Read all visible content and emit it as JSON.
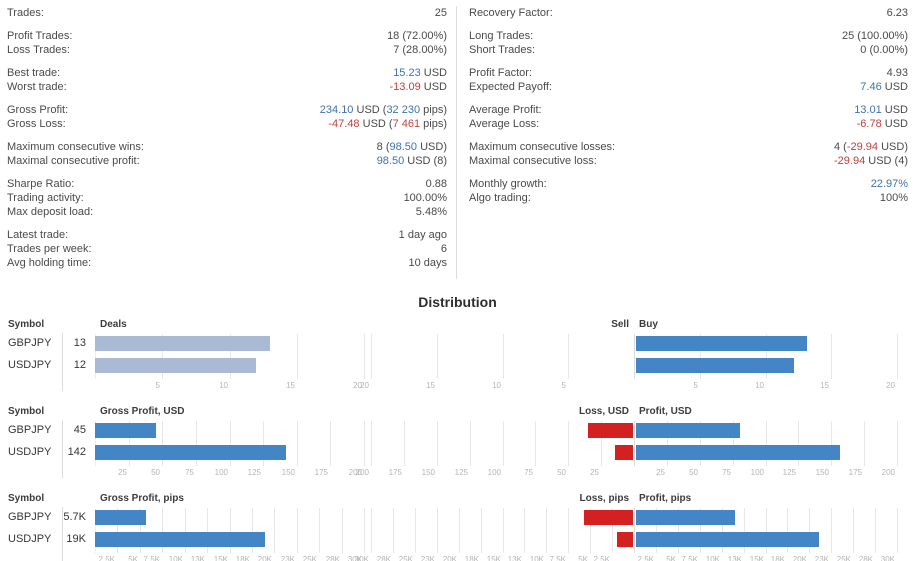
{
  "colors": {
    "value_blue": "#3f72ae",
    "value_red": "#c0403c",
    "bar_light_blue": "#aab9d4",
    "bar_blue": "#4485c5",
    "bar_red": "#d32121"
  },
  "stats": {
    "left_groups": [
      [
        {
          "label": "Trades:",
          "value": [
            [
              "plain",
              "25"
            ]
          ]
        }
      ],
      [
        {
          "label": "Profit Trades:",
          "value": [
            [
              "plain",
              "18 (72.00%)"
            ]
          ]
        },
        {
          "label": "Loss Trades:",
          "value": [
            [
              "plain",
              "7 (28.00%)"
            ]
          ]
        }
      ],
      [
        {
          "label": "Best trade:",
          "value": [
            [
              "blue",
              "15.23"
            ],
            [
              "plain",
              " USD"
            ]
          ]
        },
        {
          "label": "Worst trade:",
          "value": [
            [
              "red",
              "-13.09"
            ],
            [
              "plain",
              " USD"
            ]
          ]
        }
      ],
      [
        {
          "label": "Gross Profit:",
          "value": [
            [
              "blue",
              "234.10"
            ],
            [
              "plain",
              " USD ("
            ],
            [
              "blue",
              "32 230"
            ],
            [
              "plain",
              " pips)"
            ]
          ]
        },
        {
          "label": "Gross Loss:",
          "value": [
            [
              "red",
              "-47.48"
            ],
            [
              "plain",
              " USD ("
            ],
            [
              "red",
              "7 461"
            ],
            [
              "plain",
              " pips)"
            ]
          ]
        }
      ],
      [
        {
          "label": "Maximum consecutive wins:",
          "value": [
            [
              "plain",
              "8 ("
            ],
            [
              "blue",
              "98.50"
            ],
            [
              "plain",
              " USD)"
            ]
          ]
        },
        {
          "label": "Maximal consecutive profit:",
          "value": [
            [
              "blue",
              "98.50"
            ],
            [
              "plain",
              " USD (8)"
            ]
          ]
        }
      ],
      [
        {
          "label": "Sharpe Ratio:",
          "value": [
            [
              "plain",
              "0.88"
            ]
          ]
        },
        {
          "label": "Trading activity:",
          "value": [
            [
              "plain",
              "100.00%"
            ]
          ]
        },
        {
          "label": "Max deposit load:",
          "value": [
            [
              "plain",
              "5.48%"
            ]
          ]
        }
      ],
      [
        {
          "label": "Latest trade:",
          "value": [
            [
              "plain",
              "1 day ago"
            ]
          ]
        },
        {
          "label": "Trades per week:",
          "value": [
            [
              "plain",
              "6"
            ]
          ]
        },
        {
          "label": "Avg holding time:",
          "value": [
            [
              "plain",
              "10 days"
            ]
          ]
        }
      ]
    ],
    "right_groups": [
      [
        {
          "label": "Recovery Factor:",
          "value": [
            [
              "plain",
              "6.23"
            ]
          ]
        }
      ],
      [
        {
          "label": "Long Trades:",
          "value": [
            [
              "plain",
              "25 (100.00%)"
            ]
          ]
        },
        {
          "label": "Short Trades:",
          "value": [
            [
              "plain",
              "0 (0.00%)"
            ]
          ]
        }
      ],
      [
        {
          "label": "Profit Factor:",
          "value": [
            [
              "plain",
              "4.93"
            ]
          ]
        },
        {
          "label": "Expected Payoff:",
          "value": [
            [
              "blue",
              "7.46"
            ],
            [
              "plain",
              " USD"
            ]
          ]
        }
      ],
      [
        {
          "label": "Average Profit:",
          "value": [
            [
              "blue",
              "13.01"
            ],
            [
              "plain",
              " USD"
            ]
          ]
        },
        {
          "label": "Average Loss:",
          "value": [
            [
              "red",
              "-6.78"
            ],
            [
              "plain",
              " USD"
            ]
          ]
        }
      ],
      [
        {
          "label": "Maximum consecutive losses:",
          "value": [
            [
              "plain",
              "4 ("
            ],
            [
              "red",
              "-29.94"
            ],
            [
              "plain",
              " USD)"
            ]
          ]
        },
        {
          "label": "Maximal consecutive loss:",
          "value": [
            [
              "red",
              "-29.94"
            ],
            [
              "plain",
              " USD (4)"
            ]
          ]
        }
      ],
      [
        {
          "label": "Monthly growth:",
          "value": [
            [
              "blue",
              "22.97%"
            ]
          ]
        },
        {
          "label": "Algo trading:",
          "value": [
            [
              "plain",
              "100%"
            ]
          ]
        }
      ]
    ]
  },
  "distribution": {
    "title": "Distribution",
    "symbol_header": "Symbol",
    "sections": [
      {
        "name": "deals",
        "left_title": "Deals",
        "sell_title": "Sell",
        "buy_title": "Buy",
        "max": 20,
        "ticks": [
          [
            5,
            "5"
          ],
          [
            10,
            "10"
          ],
          [
            15,
            "15"
          ],
          [
            20,
            "20"
          ]
        ],
        "left_bar_class": "bar-light",
        "rows": [
          {
            "symbol": "GBPJPY",
            "value_label": "13",
            "net": 13,
            "loss": 0,
            "profit": 13
          },
          {
            "symbol": "USDJPY",
            "value_label": "12",
            "net": 12,
            "loss": 0,
            "profit": 12
          }
        ]
      },
      {
        "name": "usd",
        "left_title": "Gross Profit, USD",
        "sell_title": "Loss, USD",
        "buy_title": "Profit, USD",
        "max": 200,
        "ticks": [
          [
            25,
            "25"
          ],
          [
            50,
            "50"
          ],
          [
            75,
            "75"
          ],
          [
            100,
            "100"
          ],
          [
            125,
            "125"
          ],
          [
            150,
            "150"
          ],
          [
            175,
            "175"
          ],
          [
            200,
            "200"
          ]
        ],
        "left_bar_class": "bar-blue",
        "rows": [
          {
            "symbol": "GBPJPY",
            "value_label": "45",
            "net": 45,
            "loss": 34.08,
            "profit": 79.08
          },
          {
            "symbol": "USDJPY",
            "value_label": "142",
            "net": 142,
            "loss": 13.4,
            "profit": 155.02
          }
        ]
      },
      {
        "name": "pips",
        "left_title": "Gross Profit, pips",
        "sell_title": "Loss, pips",
        "buy_title": "Profit, pips",
        "max": 30000,
        "ticks": [
          [
            2500,
            "2.5K"
          ],
          [
            5000,
            "5K"
          ],
          [
            7500,
            "7.5K"
          ],
          [
            10000,
            "10K"
          ],
          [
            12500,
            "13K"
          ],
          [
            15000,
            "15K"
          ],
          [
            17500,
            "18K"
          ],
          [
            20000,
            "20K"
          ],
          [
            22500,
            "23K"
          ],
          [
            25000,
            "25K"
          ],
          [
            27500,
            "28K"
          ],
          [
            30000,
            "30K"
          ]
        ],
        "left_bar_class": "bar-blue",
        "rows": [
          {
            "symbol": "GBPJPY",
            "value_label": "5.7K",
            "net": 5700,
            "loss": 5600,
            "profit": 11300
          },
          {
            "symbol": "USDJPY",
            "value_label": "19K",
            "net": 19000,
            "loss": 1861,
            "profit": 20930
          }
        ]
      }
    ]
  },
  "chart_data": [
    {
      "type": "bar",
      "title": "Deals",
      "categories": [
        "GBPJPY",
        "USDJPY"
      ],
      "series": [
        {
          "name": "Deals",
          "values": [
            13,
            12
          ]
        },
        {
          "name": "Sell",
          "values": [
            0,
            0
          ]
        },
        {
          "name": "Buy",
          "values": [
            13,
            12
          ]
        }
      ],
      "xlim": [
        0,
        20
      ],
      "tick_step": 5,
      "orientation": "horizontal",
      "grid": true
    },
    {
      "type": "bar",
      "title": "Gross Profit, USD",
      "categories": [
        "GBPJPY",
        "USDJPY"
      ],
      "series": [
        {
          "name": "Gross Profit, USD",
          "values": [
            45,
            142
          ]
        },
        {
          "name": "Loss, USD",
          "values": [
            34.08,
            13.4
          ]
        },
        {
          "name": "Profit, USD",
          "values": [
            79.08,
            155.02
          ]
        }
      ],
      "xlim": [
        0,
        200
      ],
      "tick_step": 25,
      "orientation": "horizontal",
      "grid": true
    },
    {
      "type": "bar",
      "title": "Gross Profit, pips",
      "categories": [
        "GBPJPY",
        "USDJPY"
      ],
      "series": [
        {
          "name": "Gross Profit, pips",
          "values": [
            5700,
            19000
          ]
        },
        {
          "name": "Loss, pips",
          "values": [
            5600,
            1861
          ]
        },
        {
          "name": "Profit, pips",
          "values": [
            11300,
            20930
          ]
        }
      ],
      "xlim": [
        0,
        30000
      ],
      "tick_step": 2500,
      "orientation": "horizontal",
      "grid": true
    }
  ]
}
